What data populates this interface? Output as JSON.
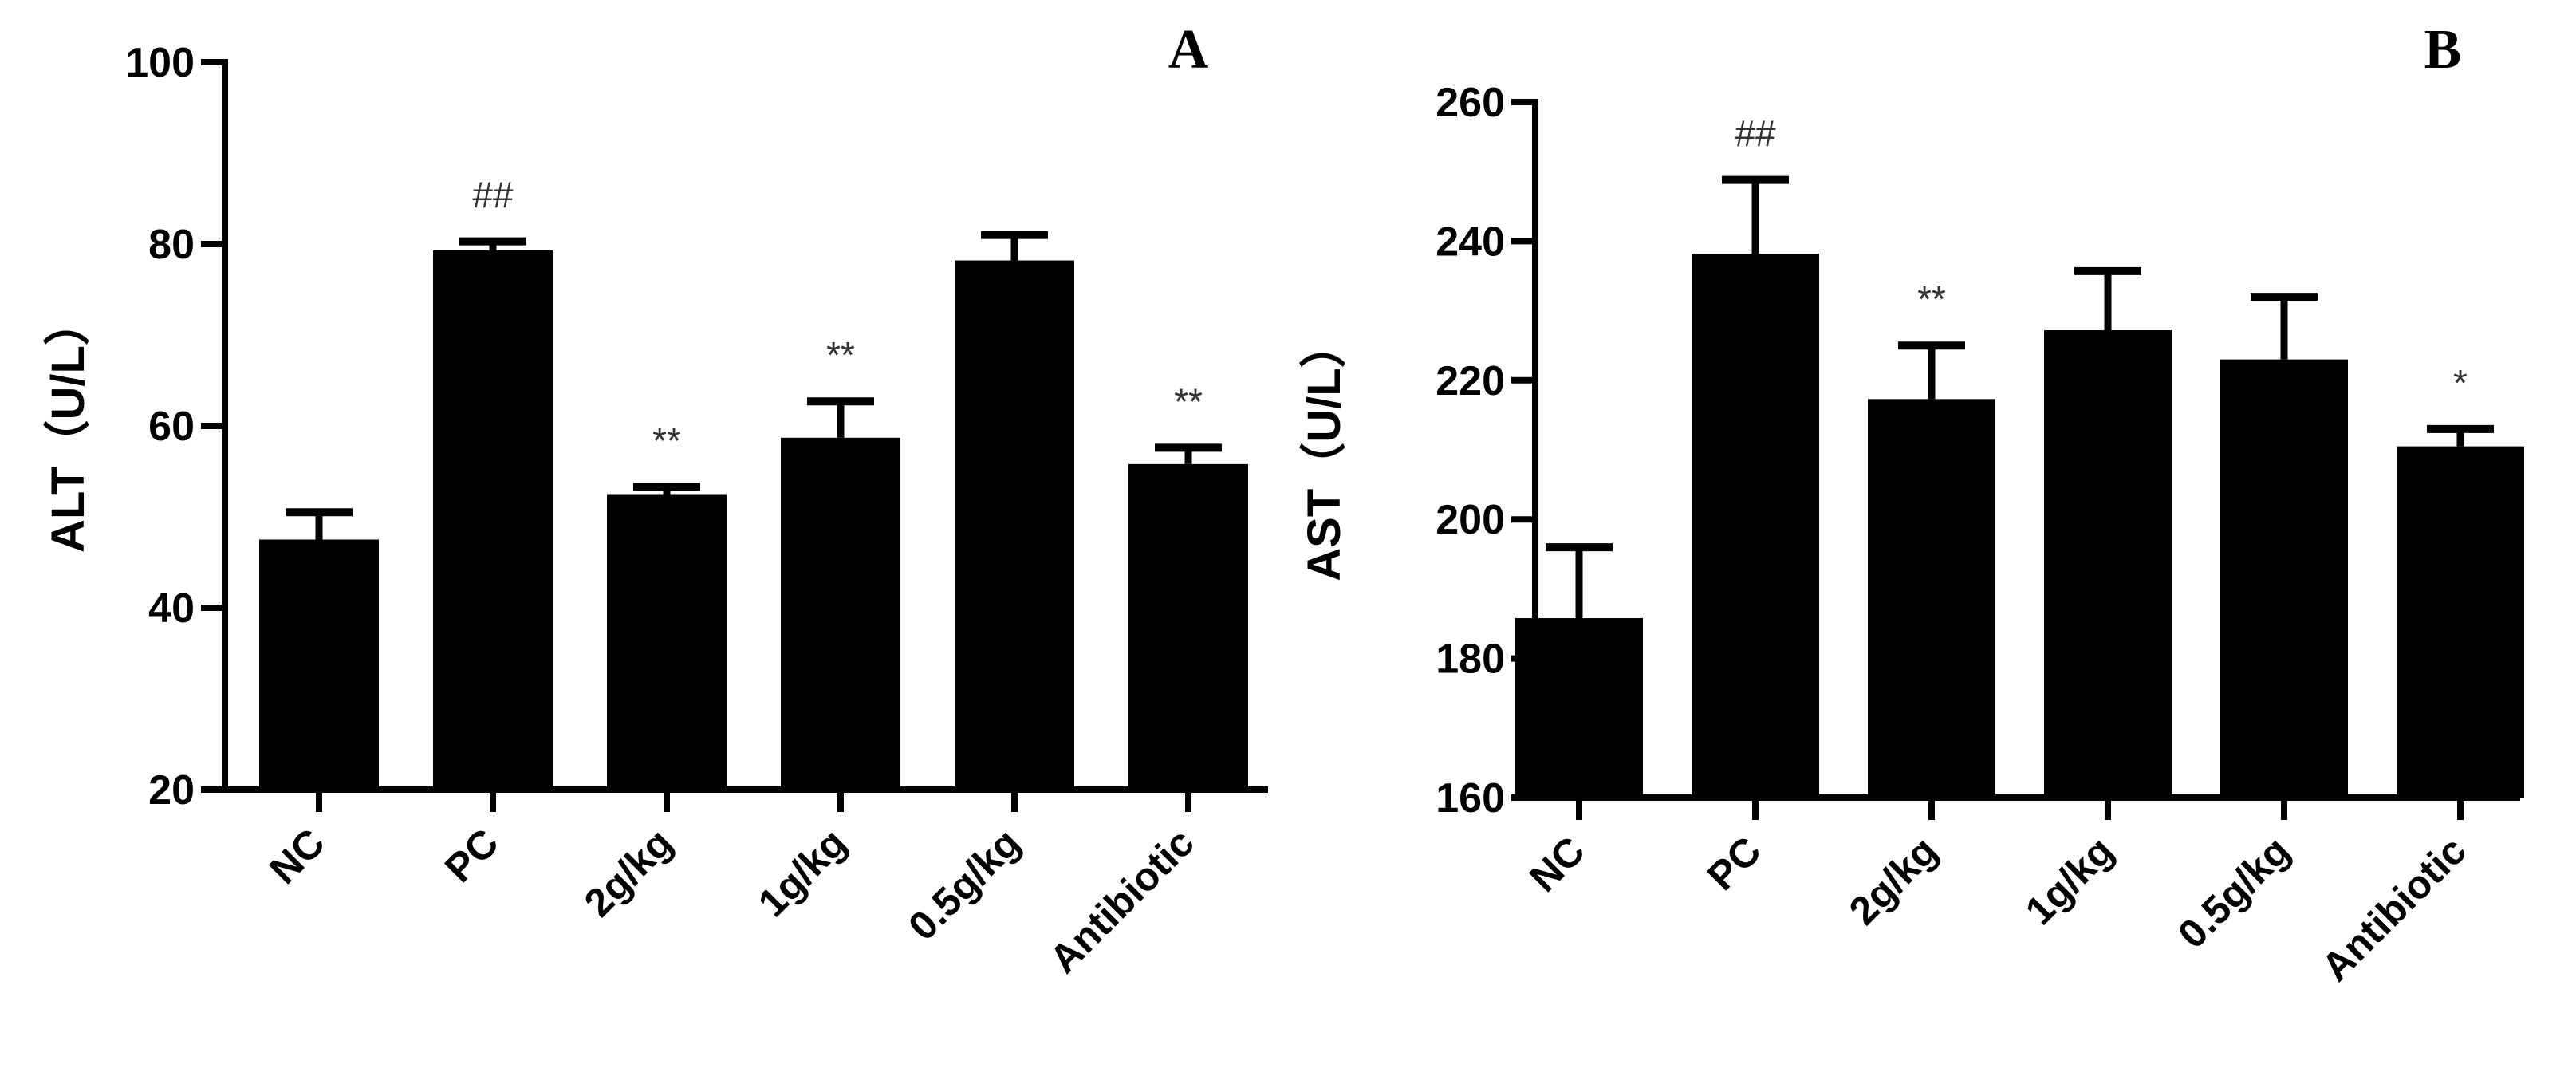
{
  "chart_data": [
    {
      "type": "bar",
      "panel_label": "A",
      "ylabel": "ALT（U/L）",
      "ylim": [
        20,
        100
      ],
      "yticks": [
        20,
        40,
        60,
        80,
        100
      ],
      "categories": [
        "NC",
        "PC",
        "2g/kg",
        "1g/kg",
        "0.5g/kg",
        "Antibiotic"
      ],
      "values": [
        47.5,
        79.3,
        52.5,
        58.7,
        78.2,
        55.8
      ],
      "errors": [
        3.0,
        1.0,
        0.8,
        4.0,
        2.8,
        1.8
      ],
      "annotations": [
        "",
        "##",
        "**",
        "**",
        "",
        "**"
      ],
      "grid": false,
      "bar_color": "#000000"
    },
    {
      "type": "bar",
      "panel_label": "B",
      "ylabel": "AST（U/L）",
      "ylim": [
        160,
        260
      ],
      "yticks": [
        160,
        180,
        200,
        220,
        240,
        260
      ],
      "categories": [
        "NC",
        "PC",
        "2g/kg",
        "1g/kg",
        "0.5g/kg",
        "Antibiotic"
      ],
      "values": [
        185.8,
        238.2,
        217.3,
        227.2,
        223.0,
        210.5
      ],
      "errors": [
        10.2,
        10.6,
        7.7,
        8.5,
        9.0,
        2.5
      ],
      "annotations": [
        "",
        "##",
        "**",
        "",
        "",
        "*"
      ],
      "grid": false,
      "bar_color": "#000000"
    }
  ]
}
